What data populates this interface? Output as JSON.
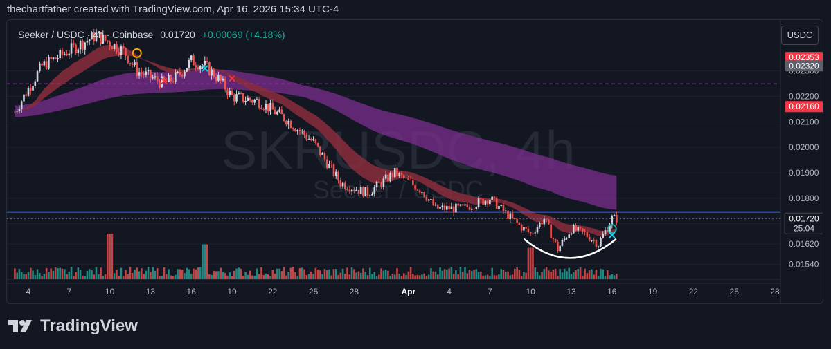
{
  "header": {
    "text": "thechartfather created with TradingView.com, Apr 16, 2026 15:34 UTC-4"
  },
  "legend": {
    "symbol": "Seeker / USDC · 4h · Coinbase",
    "price": "0.01720",
    "change": "+0.00069 (+4.18%)",
    "change_color": "#26a69a"
  },
  "currency_button": "USDC",
  "watermark": {
    "line1": "SKRUSDC, 4h",
    "line2": "Seeker / USDC"
  },
  "footer": {
    "brand": "TradingView"
  },
  "colors": {
    "background": "#131722",
    "up_candle": "#d1d4dc",
    "down_candle": "#ef5350",
    "volume_up": "#26a69a",
    "volume_down": "#ef5350",
    "cloud_bear": "#7b2e8f",
    "cloud_bull": "#2e7d5a",
    "ema_ribbon": "#8b2d3c",
    "blue_line": "#2962ff",
    "marker_red": "#f23645",
    "marker_cyan": "#22d3ee",
    "marker_green": "#26a69a",
    "marker_orange": "#f7a600"
  },
  "chart_data": {
    "type": "candlestick",
    "title": "Seeker / USDC · 4h · Coinbase",
    "xlabel": "",
    "ylabel": "",
    "ylim": [
      0.0149,
      0.025
    ],
    "x_ticks": [
      "4",
      "7",
      "10",
      "13",
      "16",
      "19",
      "22",
      "25",
      "28",
      "Apr",
      "4",
      "7",
      "10",
      "13",
      "16",
      "19",
      "22",
      "25",
      "28"
    ],
    "y_ticks": [
      "0.02300",
      "0.02200",
      "0.02100",
      "0.02000",
      "0.01900",
      "0.01800",
      "0.01620",
      "0.01540"
    ],
    "close_path": [
      {
        "date": "Mar 3",
        "price": 0.0214
      },
      {
        "date": "Mar 5",
        "price": 0.0232
      },
      {
        "date": "Mar 7",
        "price": 0.0238
      },
      {
        "date": "Mar 9",
        "price": 0.0244
      },
      {
        "date": "Mar 11",
        "price": 0.0238
      },
      {
        "date": "Mar 12",
        "price": 0.023
      },
      {
        "date": "Mar 14",
        "price": 0.0225
      },
      {
        "date": "Mar 15",
        "price": 0.0228
      },
      {
        "date": "Mar 16",
        "price": 0.0234
      },
      {
        "date": "Mar 17",
        "price": 0.0232
      },
      {
        "date": "Mar 18",
        "price": 0.0227
      },
      {
        "date": "Mar 19",
        "price": 0.022
      },
      {
        "date": "Mar 21",
        "price": 0.0218
      },
      {
        "date": "Mar 23",
        "price": 0.0211
      },
      {
        "date": "Mar 25",
        "price": 0.0202
      },
      {
        "date": "Mar 27",
        "price": 0.0186
      },
      {
        "date": "Mar 29",
        "price": 0.0182
      },
      {
        "date": "Mar 31",
        "price": 0.019
      },
      {
        "date": "Apr 2",
        "price": 0.0183
      },
      {
        "date": "Apr 3",
        "price": 0.0176
      },
      {
        "date": "Apr 5",
        "price": 0.0176
      },
      {
        "date": "Apr 7",
        "price": 0.018
      },
      {
        "date": "Apr 9",
        "price": 0.017
      },
      {
        "date": "Apr 10",
        "price": 0.0166
      },
      {
        "date": "Apr 11",
        "price": 0.0172
      },
      {
        "date": "Apr 12",
        "price": 0.016
      },
      {
        "date": "Apr 13",
        "price": 0.0168
      },
      {
        "date": "Apr 14",
        "price": 0.0166
      },
      {
        "date": "Apr 15",
        "price": 0.0162
      },
      {
        "date": "Apr 16",
        "price": 0.0172
      }
    ],
    "volume_spikes": [
      {
        "date": "Mar 10",
        "volume": 0.55
      },
      {
        "date": "Mar 17",
        "volume": 0.42
      },
      {
        "date": "Apr 10",
        "volume": 0.38
      }
    ],
    "price_labels": [
      {
        "value": "0.02353",
        "price": 0.02353,
        "color": "#f23645"
      },
      {
        "value": "0.02320",
        "price": 0.0232,
        "color": "#5d606b"
      },
      {
        "value": "0.02160",
        "price": 0.0216,
        "color": "#f23645"
      },
      {
        "value": "0.01720",
        "price": 0.0172,
        "color": "#131722",
        "sub": "25:04"
      }
    ],
    "horizontal_lines": [
      {
        "price": 0.0225,
        "style": "dashed",
        "color": "#9c27b0"
      },
      {
        "price": 0.01745,
        "style": "solid",
        "color": "#2962ff"
      },
      {
        "price": 0.0172,
        "style": "dotted",
        "color": "#787b86"
      }
    ],
    "annotation": "rounded bottom arc under Apr 10 – Apr 16"
  }
}
